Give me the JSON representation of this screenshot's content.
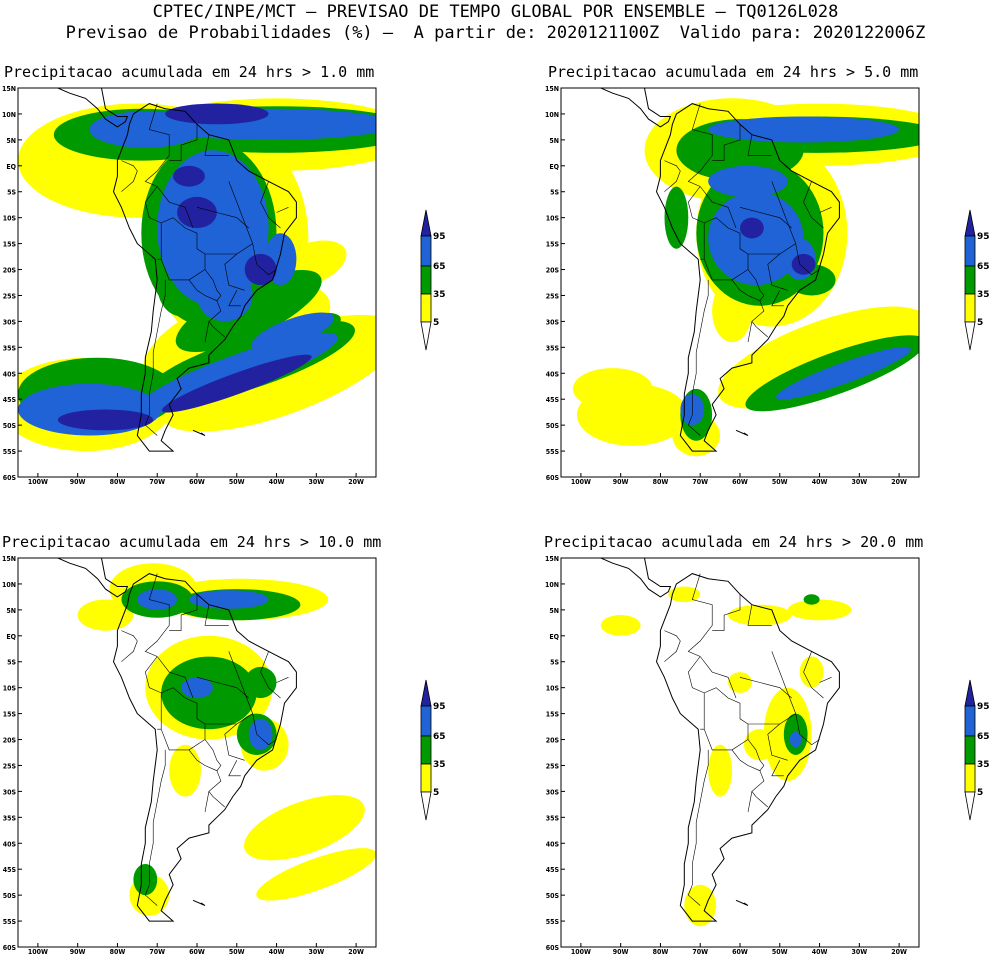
{
  "header": {
    "line1": "CPTEC/INPE/MCT – PREVISAO DE TEMPO GLOBAL POR ENSEMBLE – TQ0126L028",
    "line2": "Previsao de Probabilidades (%) –  A partir de: 2020121100Z  Valido para: 2020122006Z"
  },
  "axes": {
    "lat_labels": [
      "15N",
      "10N",
      "5N",
      "EQ",
      "5S",
      "10S",
      "15S",
      "20S",
      "25S",
      "30S",
      "35S",
      "40S",
      "45S",
      "50S",
      "55S",
      "60S"
    ],
    "lon_labels": [
      "100W",
      "90W",
      "80W",
      "70W",
      "60W",
      "50W",
      "40W",
      "30W",
      "20W"
    ]
  },
  "legend": {
    "levels": [
      "95",
      "65",
      "35",
      "5"
    ],
    "colors": {
      "c5": "#ffff00",
      "c35": "#009900",
      "c65": "#1f63d6",
      "c95": "#2222a0"
    }
  },
  "panels": [
    {
      "title": "Precipitacao acumulada em 24 hrs > 1.0 mm"
    },
    {
      "title": "Precipitacao acumulada em 24 hrs > 5.0 mm"
    },
    {
      "title": "Precipitacao acumulada em 24 hrs > 10.0 mm"
    },
    {
      "title": "Precipitacao acumulada em 24 hrs > 20.0 mm"
    }
  ]
}
